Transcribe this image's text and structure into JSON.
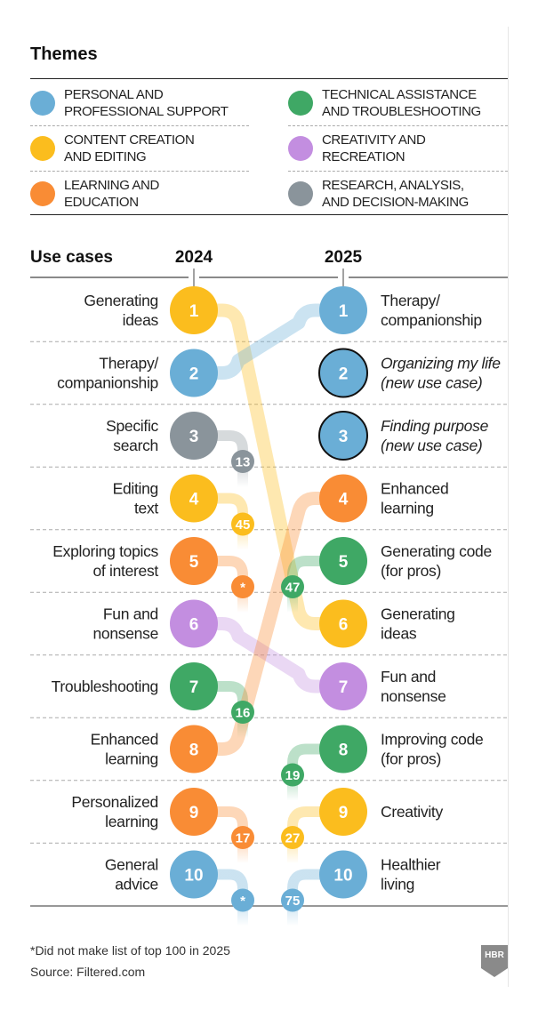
{
  "themes": {
    "title": "Themes",
    "items": [
      {
        "label": "PERSONAL AND PROFESSIONAL SUPPORT",
        "line1": "PERSONAL AND",
        "line2": "PROFESSIONAL SUPPORT",
        "color": "#6aaed6",
        "key": "personal"
      },
      {
        "label": "TECHNICAL ASSISTANCE AND TROUBLESHOOTING",
        "line1": "TECHNICAL ASSISTANCE",
        "line2": "AND TROUBLESHOOTING",
        "color": "#3fa865",
        "key": "technical"
      },
      {
        "label": "CONTENT CREATION AND EDITING",
        "line1": "CONTENT CREATION",
        "line2": "AND EDITING",
        "color": "#fbbd1e",
        "key": "content"
      },
      {
        "label": "CREATIVITY AND RECREATION",
        "line1": "CREATIVITY AND",
        "line2": "RECREATION",
        "color": "#c38ee0",
        "key": "creativity"
      },
      {
        "label": "LEARNING AND EDUCATION",
        "line1": "LEARNING AND",
        "line2": "EDUCATION",
        "color": "#f98c35",
        "key": "learning"
      },
      {
        "label": "RESEARCH, ANALYSIS, AND DECISION-MAKING",
        "line1": "RESEARCH, ANALYSIS,",
        "line2": "AND DECISION-MAKING",
        "color": "#8a949b",
        "key": "research"
      }
    ]
  },
  "chart_data": {
    "type": "bump",
    "title": "Use cases",
    "columns": [
      "2024",
      "2025"
    ],
    "ranks_2024": [
      {
        "rank": 1,
        "lines": [
          "Generating",
          "ideas"
        ],
        "theme": "content",
        "rank_2025": "6"
      },
      {
        "rank": 2,
        "lines": [
          "Therapy/",
          "companionship"
        ],
        "theme": "personal",
        "rank_2025": "1"
      },
      {
        "rank": 3,
        "lines": [
          "Specific",
          "search"
        ],
        "theme": "research",
        "rank_2025": "13"
      },
      {
        "rank": 4,
        "lines": [
          "Editing",
          "text"
        ],
        "theme": "content",
        "rank_2025": "45"
      },
      {
        "rank": 5,
        "lines": [
          "Exploring topics",
          "of interest"
        ],
        "theme": "learning",
        "rank_2025": "*"
      },
      {
        "rank": 6,
        "lines": [
          "Fun and",
          "nonsense"
        ],
        "theme": "creativity",
        "rank_2025": "7"
      },
      {
        "rank": 7,
        "lines": [
          "Troubleshooting"
        ],
        "theme": "technical",
        "rank_2025": "16"
      },
      {
        "rank": 8,
        "lines": [
          "Enhanced",
          "learning"
        ],
        "theme": "learning",
        "rank_2025": "4"
      },
      {
        "rank": 9,
        "lines": [
          "Personalized",
          "learning"
        ],
        "theme": "learning",
        "rank_2025": "17"
      },
      {
        "rank": 10,
        "lines": [
          "General",
          "advice"
        ],
        "theme": "personal",
        "rank_2025": "*"
      }
    ],
    "ranks_2025": [
      {
        "rank": 1,
        "lines": [
          "Therapy/",
          "companionship"
        ],
        "theme": "personal",
        "rank_2024": "2"
      },
      {
        "rank": 2,
        "lines": [
          "Organizing my life",
          "(new use case)"
        ],
        "theme": "personal",
        "rank_2024": "new"
      },
      {
        "rank": 3,
        "lines": [
          "Finding purpose",
          "(new use case)"
        ],
        "theme": "personal",
        "rank_2024": "new"
      },
      {
        "rank": 4,
        "lines": [
          "Enhanced",
          "learning"
        ],
        "theme": "learning",
        "rank_2024": "8"
      },
      {
        "rank": 5,
        "lines": [
          "Generating code",
          "(for pros)"
        ],
        "theme": "technical",
        "rank_2024": "47"
      },
      {
        "rank": 6,
        "lines": [
          "Generating",
          "ideas"
        ],
        "theme": "content",
        "rank_2024": "1"
      },
      {
        "rank": 7,
        "lines": [
          "Fun and",
          "nonsense"
        ],
        "theme": "creativity",
        "rank_2024": "6"
      },
      {
        "rank": 8,
        "lines": [
          "Improving code",
          "(for pros)"
        ],
        "theme": "technical",
        "rank_2024": "19"
      },
      {
        "rank": 9,
        "lines": [
          "Creativity"
        ],
        "theme": "creativity_yellow",
        "rank_2024": "27"
      },
      {
        "rank": 10,
        "lines": [
          "Healthier",
          "living"
        ],
        "theme": "personal",
        "rank_2024": "75"
      }
    ]
  },
  "footnote": "*Did not make list of top 100 in 2025",
  "source": "Source: Filtered.com",
  "logo": "HBR"
}
